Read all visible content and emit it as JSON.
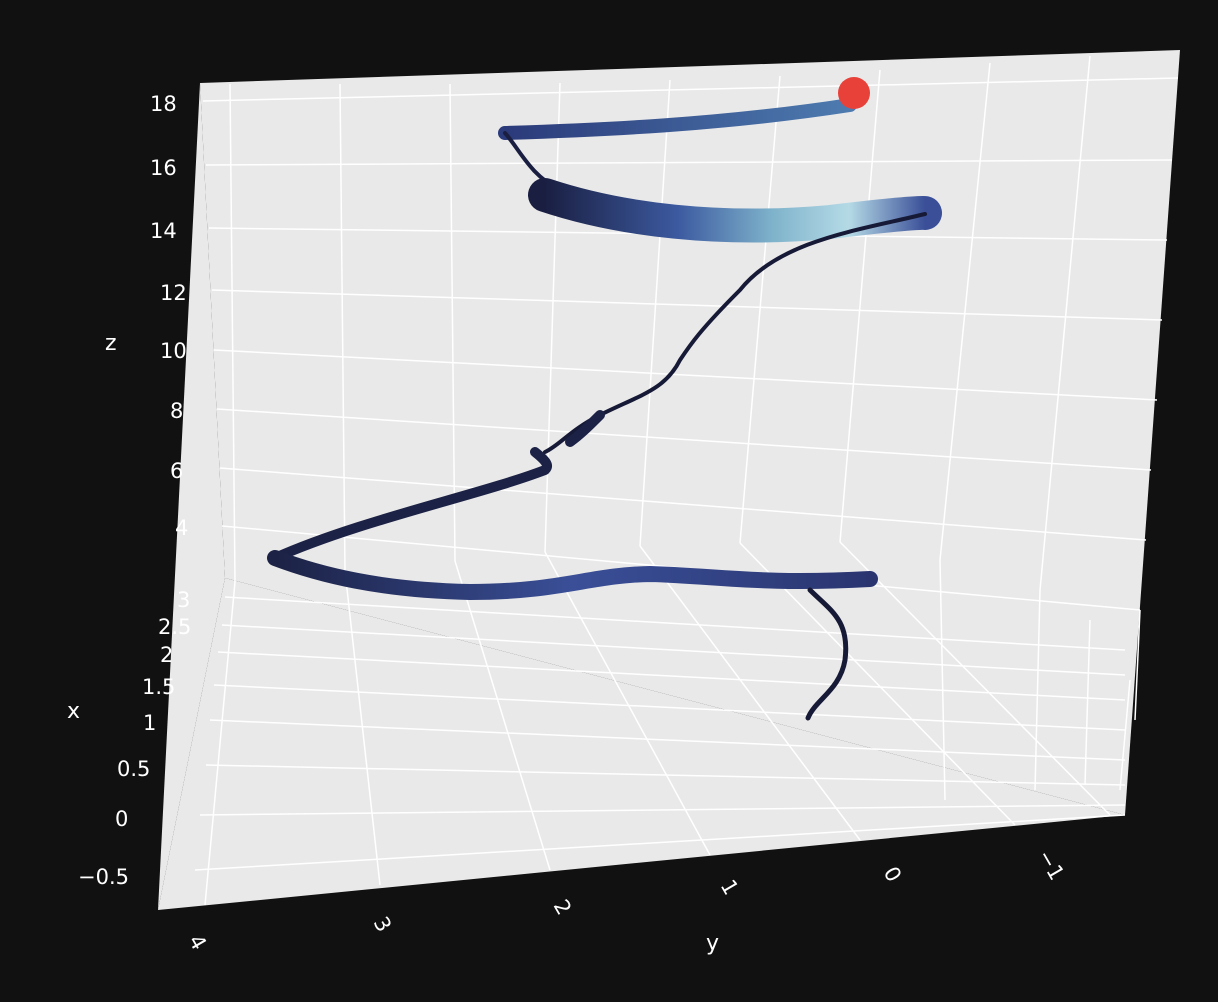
{
  "colors": {
    "background": "#111111",
    "pane": "#e9e9e9",
    "grid": "#ffffff",
    "text": "#ffffff",
    "marker": "#e8413a",
    "tube_dark": "#161a36",
    "tube_mid": "#3a4f98",
    "tube_light": "#b5dae6"
  },
  "chart_data": {
    "type": "scatter3d",
    "title": "",
    "axes": {
      "x": {
        "label": "x",
        "ticks": [
          "3",
          "2.5",
          "2",
          "1.5",
          "1",
          "0.5",
          "0",
          "−0.5"
        ],
        "range": [
          -0.7,
          3.1
        ]
      },
      "y": {
        "label": "y",
        "ticks": [
          "4",
          "3",
          "2",
          "1",
          "0",
          "−1"
        ],
        "range": [
          -1.5,
          4.2
        ]
      },
      "z": {
        "label": "z",
        "ticks": [
          "18",
          "16",
          "14",
          "12",
          "10",
          "8",
          "6",
          "4"
        ],
        "range": [
          3,
          18.5
        ]
      }
    },
    "grid": true,
    "legend": "none",
    "trajectory": {
      "description_points_yz": [
        [
          0.0,
          18.2
        ],
        [
          1.2,
          17.6
        ],
        [
          2.5,
          17.3
        ],
        [
          3.4,
          17.1
        ],
        [
          2.8,
          15.8
        ],
        [
          1.5,
          14.8
        ],
        [
          0.3,
          14.6
        ],
        [
          -0.6,
          14.8
        ],
        [
          0.2,
          13.8
        ],
        [
          0.8,
          12.5
        ],
        [
          1.2,
          10.0
        ],
        [
          1.6,
          8.0
        ],
        [
          2.3,
          6.6
        ],
        [
          3.0,
          5.6
        ],
        [
          4.0,
          3.7
        ],
        [
          3.0,
          3.4
        ],
        [
          1.8,
          3.5
        ],
        [
          0.6,
          3.6
        ],
        [
          -0.1,
          3.5
        ],
        [
          0.1,
          3.3
        ],
        [
          0.2,
          1.5
        ]
      ],
      "current_point": {
        "y": 0.0,
        "z": 18.2
      }
    }
  }
}
